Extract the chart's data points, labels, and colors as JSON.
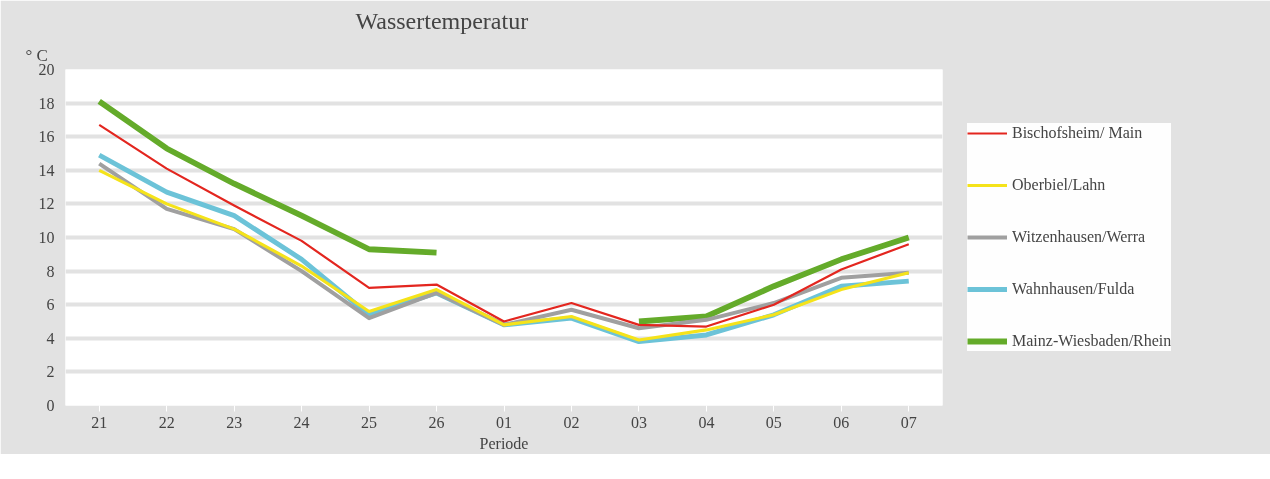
{
  "chart_data": {
    "type": "line",
    "title": "Wassertemperatur",
    "ylabel": "° C",
    "xlabel": "Periode",
    "categories": [
      "21",
      "22",
      "23",
      "24",
      "25",
      "26",
      "01",
      "02",
      "03",
      "04",
      "05",
      "06",
      "07"
    ],
    "series": [
      {
        "name": "Bischofsheim/ Main",
        "color": "#e3261f",
        "values": [
          16.7,
          14.1,
          11.9,
          9.8,
          7.0,
          7.2,
          5.0,
          6.1,
          4.8,
          4.7,
          6.0,
          8.1,
          9.6
        ]
      },
      {
        "name": "Oberbiel/Lahn",
        "color": "#f5e31a",
        "values": [
          14.0,
          12.0,
          10.5,
          8.3,
          5.6,
          6.9,
          4.8,
          5.3,
          3.9,
          4.5,
          5.4,
          6.9,
          7.9
        ]
      },
      {
        "name": "Witzenhausen/Werra",
        "color": "#a0a0a0",
        "values": [
          14.4,
          11.7,
          10.5,
          8.0,
          5.2,
          6.7,
          4.8,
          5.7,
          4.6,
          5.1,
          6.1,
          7.6,
          7.9
        ]
      },
      {
        "name": "Wahnhausen/Fulda",
        "color": "#6cc3d8",
        "values": [
          14.9,
          12.7,
          11.3,
          8.7,
          5.4,
          6.7,
          4.8,
          5.2,
          3.8,
          4.2,
          5.4,
          7.1,
          7.4
        ]
      },
      {
        "name": "Mainz-Wiesbaden/Rhein",
        "color": "#64ab2a",
        "values": [
          18.1,
          15.3,
          13.2,
          11.3,
          9.3,
          9.1,
          null,
          null,
          5.0,
          5.3,
          7.1,
          8.7,
          10.0
        ]
      }
    ],
    "ylim": [
      0,
      20
    ],
    "yticks": [
      0,
      2,
      4,
      6,
      8,
      10,
      12,
      14,
      16,
      18,
      20
    ],
    "grid": "y",
    "legend": "right",
    "marker": "none",
    "line_style": "solid"
  }
}
